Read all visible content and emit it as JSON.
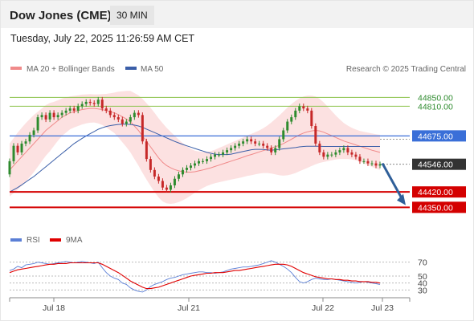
{
  "header": {
    "title": "Dow Jones (CME)",
    "timeframe": "30 MIN"
  },
  "timestamp": "Tuesday, July 22, 2025 11:26:59 AM CET",
  "credit": "Research © 2025 Trading Central",
  "legend": {
    "bollinger": {
      "label": "MA 20 + Bollinger Bands",
      "color": "#f08a8a"
    },
    "ma50": {
      "label": "MA 50",
      "color": "#3a5ea8"
    },
    "rsi": {
      "label": "RSI",
      "color": "#5b7fd6"
    },
    "rsi_ma": {
      "label": "9MA",
      "color": "#e00000"
    }
  },
  "colors": {
    "up": "#2e8b2e",
    "down": "#c62828",
    "resistance": "#8bc34a",
    "pivot": "#3a6fd8",
    "support": "#d40000",
    "arrow": "#2f5f99",
    "current": "#333333"
  },
  "chart_data": [
    {
      "type": "candlestick",
      "title": "Dow Jones (CME)",
      "ylim": [
        44260,
        44910
      ],
      "x_ticks": [
        "Jul 18",
        "Jul 21",
        "Jul 22",
        "Jul 23"
      ],
      "levels": [
        {
          "value": 44850,
          "label": "44850.00",
          "kind": "resistance"
        },
        {
          "value": 44810,
          "label": "44810.00",
          "kind": "resistance"
        },
        {
          "value": 44675,
          "label": "44675.00",
          "kind": "pivot"
        },
        {
          "value": 44546,
          "label": "44546.00",
          "kind": "current"
        },
        {
          "value": 44420,
          "label": "44420.00",
          "kind": "support"
        },
        {
          "value": 44350,
          "label": "44350.00",
          "kind": "support"
        }
      ],
      "arrow": {
        "from": 44550,
        "to": 44360
      },
      "close": [
        44560,
        44630,
        44600,
        44640,
        44650,
        44680,
        44700,
        44760,
        44770,
        44750,
        44780,
        44760,
        44770,
        44780,
        44790,
        44800,
        44790,
        44810,
        44820,
        44830,
        44825,
        44820,
        44840,
        44800,
        44790,
        44770,
        44760,
        44750,
        44730,
        44740,
        44760,
        44780,
        44770,
        44650,
        44570,
        44520,
        44490,
        44470,
        44440,
        44430,
        44450,
        44480,
        44500,
        44520,
        44530,
        44540,
        44550,
        44560,
        44560,
        44570,
        44580,
        44590,
        44590,
        44600,
        44610,
        44620,
        44630,
        44640,
        44650,
        44660,
        44650,
        44640,
        44640,
        44630,
        44620,
        44600,
        44620,
        44660,
        44700,
        44740,
        44760,
        44790,
        44810,
        44800,
        44790,
        44720,
        44640,
        44600,
        44580,
        44590,
        44590,
        44600,
        44610,
        44620,
        44600,
        44590,
        44580,
        44560,
        44560,
        44550,
        44550,
        44540,
        44546
      ],
      "open": [
        44500,
        44560,
        44630,
        44600,
        44640,
        44650,
        44680,
        44700,
        44760,
        44770,
        44750,
        44780,
        44760,
        44770,
        44780,
        44790,
        44800,
        44790,
        44810,
        44820,
        44830,
        44825,
        44820,
        44840,
        44800,
        44790,
        44770,
        44760,
        44750,
        44730,
        44740,
        44760,
        44780,
        44770,
        44650,
        44570,
        44520,
        44490,
        44470,
        44440,
        44430,
        44450,
        44480,
        44500,
        44520,
        44530,
        44540,
        44550,
        44560,
        44560,
        44570,
        44580,
        44590,
        44590,
        44600,
        44610,
        44620,
        44630,
        44640,
        44650,
        44660,
        44650,
        44640,
        44640,
        44630,
        44620,
        44600,
        44620,
        44660,
        44700,
        44740,
        44760,
        44790,
        44810,
        44800,
        44790,
        44720,
        44640,
        44600,
        44580,
        44590,
        44590,
        44600,
        44610,
        44620,
        44600,
        44590,
        44580,
        44560,
        44560,
        44550,
        44550,
        44540
      ],
      "ma50": [
        44420,
        44430,
        44440,
        44452,
        44465,
        44478,
        44490,
        44505,
        44520,
        44535,
        44550,
        44565,
        44580,
        44595,
        44610,
        44625,
        44640,
        44652,
        44664,
        44675,
        44685,
        44695,
        44705,
        44712,
        44718,
        44722,
        44725,
        44727,
        44728,
        44728,
        44727,
        44724,
        44720,
        44714,
        44706,
        44698,
        44690,
        44682,
        44674,
        44666,
        44658,
        44650,
        44643,
        44636,
        44630,
        44624,
        44618,
        44612,
        44606,
        44600,
        44596,
        44592,
        44590,
        44590,
        44590,
        44592,
        44596,
        44600,
        44604,
        44608,
        44612,
        44614,
        44614,
        44613,
        44611,
        44610,
        44612,
        44614,
        44616,
        44618,
        44620,
        44622,
        44625,
        44627,
        44628,
        44628,
        44628,
        44628,
        44627,
        44627,
        44627,
        44627,
        44627,
        44627,
        44627,
        44627,
        44627,
        44627,
        44627,
        44627,
        44627,
        44627,
        44627
      ],
      "bb_mid": [
        44520,
        44540,
        44560,
        44580,
        44600,
        44620,
        44640,
        44660,
        44680,
        44700,
        44715,
        44730,
        44745,
        44760,
        44770,
        44780,
        44785,
        44790,
        44795,
        44798,
        44800,
        44800,
        44798,
        44795,
        44790,
        44785,
        44780,
        44772,
        44762,
        44752,
        44740,
        44720,
        44700,
        44675,
        44650,
        44625,
        44600,
        44575,
        44555,
        44540,
        44530,
        44522,
        44516,
        44512,
        44510,
        44510,
        44512,
        44516,
        44520,
        44525,
        44530,
        44536,
        44542,
        44548,
        44554,
        44560,
        44566,
        44572,
        44578,
        44585,
        44590,
        44596,
        44602,
        44608,
        44614,
        44620,
        44626,
        44632,
        44640,
        44650,
        44660,
        44670,
        44680,
        44688,
        44694,
        44698,
        44700,
        44698,
        44692,
        44684,
        44676,
        44668,
        44660,
        44652,
        44646,
        44640,
        44634,
        44628,
        44622,
        44616,
        44610,
        44605,
        44600
      ],
      "bb_width": [
        120,
        125,
        130,
        132,
        133,
        132,
        130,
        125,
        120,
        115,
        110,
        100,
        92,
        85,
        80,
        75,
        72,
        70,
        68,
        66,
        65,
        64,
        66,
        70,
        76,
        84,
        92,
        104,
        116,
        128,
        140,
        150,
        160,
        168,
        174,
        178,
        180,
        180,
        178,
        172,
        164,
        154,
        142,
        130,
        118,
        106,
        96,
        88,
        82,
        78,
        76,
        76,
        78,
        80,
        82,
        84,
        86,
        88,
        90,
        92,
        94,
        96,
        98,
        102,
        108,
        116,
        126,
        136,
        146,
        154,
        160,
        164,
        166,
        166,
        164,
        160,
        154,
        146,
        136,
        124,
        112,
        100,
        90,
        82,
        76,
        72,
        70,
        70,
        72,
        74,
        76,
        78,
        80
      ]
    },
    {
      "type": "line",
      "ylim": [
        20,
        80
      ],
      "y_ticks": [
        70,
        50,
        40,
        30
      ],
      "series": [
        {
          "name": "RSI",
          "values": [
            58,
            60,
            64,
            62,
            66,
            67,
            68,
            70,
            69,
            68,
            67,
            68,
            69,
            70,
            71,
            70,
            69,
            70,
            71,
            70,
            69,
            68,
            70,
            62,
            55,
            50,
            47,
            45,
            40,
            38,
            33,
            30,
            28,
            27,
            30,
            35,
            38,
            40,
            42,
            45,
            47,
            48,
            50,
            52,
            53,
            54,
            55,
            56,
            56,
            55,
            55,
            54,
            55,
            56,
            58,
            60,
            61,
            62,
            63,
            63,
            64,
            65,
            66,
            68,
            70,
            72,
            70,
            67,
            64,
            60,
            55,
            48,
            42,
            40,
            42,
            45,
            47,
            46,
            45,
            45,
            46,
            45,
            44,
            43,
            42,
            41,
            40,
            41,
            42,
            41,
            40,
            39,
            38
          ]
        },
        {
          "name": "9MA",
          "values": [
            55,
            57,
            59,
            60,
            61,
            62,
            63,
            64,
            65,
            66,
            67,
            67,
            68,
            68,
            68,
            69,
            69,
            69,
            69,
            69,
            69,
            69,
            69,
            67,
            64,
            61,
            58,
            55,
            51,
            47,
            43,
            40,
            37,
            34,
            32,
            32,
            33,
            34,
            36,
            38,
            40,
            42,
            44,
            46,
            48,
            50,
            51,
            52,
            53,
            54,
            54,
            55,
            55,
            55,
            56,
            57,
            58,
            58,
            59,
            60,
            61,
            62,
            63,
            64,
            65,
            66,
            67,
            67,
            67,
            66,
            64,
            61,
            58,
            55,
            53,
            51,
            49,
            48,
            47,
            46,
            46,
            45,
            45,
            44,
            44,
            43,
            43,
            42,
            42,
            42,
            41,
            41,
            40
          ]
        }
      ]
    }
  ]
}
